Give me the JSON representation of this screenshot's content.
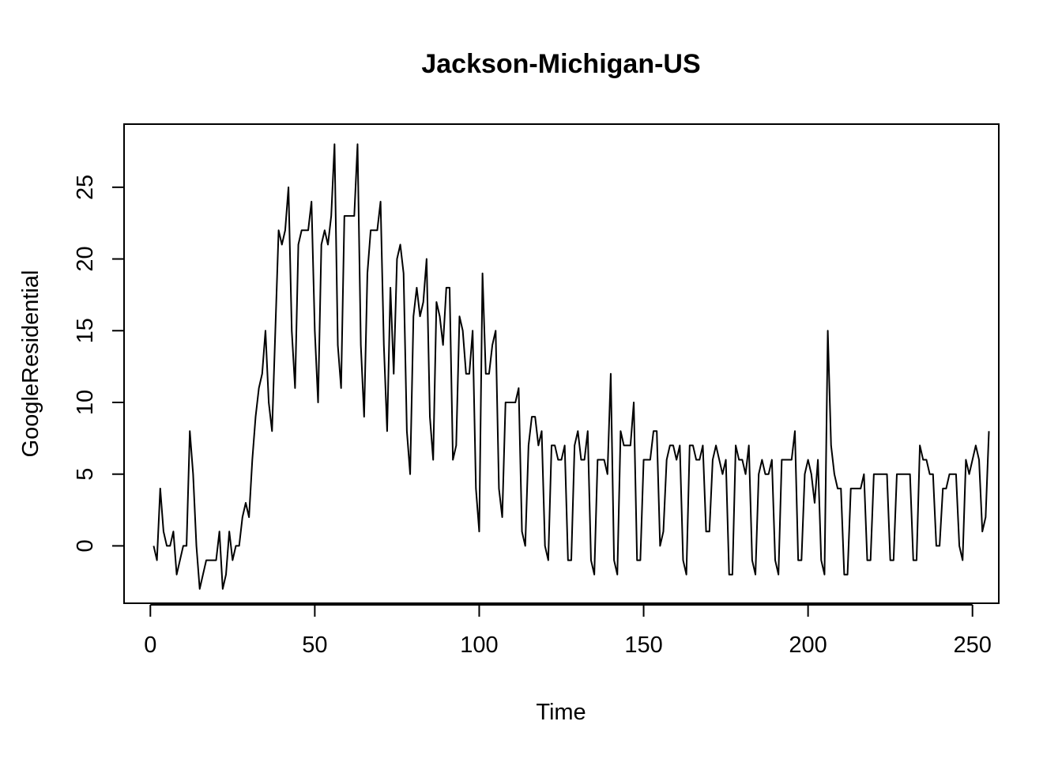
{
  "chart_data": {
    "type": "line",
    "title": "Jackson-Michigan-US",
    "xlabel": "Time",
    "ylabel": "GoogleResidential",
    "xlim": [
      -8,
      258
    ],
    "ylim": [
      -4,
      29.4
    ],
    "xticks": [
      0,
      50,
      100,
      150,
      200,
      250
    ],
    "yticks": [
      0,
      5,
      10,
      15,
      20,
      25
    ],
    "grid": false,
    "legend": "none",
    "line_color": "#000000",
    "series": [
      {
        "x_start": 1,
        "values": [
          0,
          -1,
          4,
          1,
          0,
          0,
          1,
          -2,
          -1,
          0,
          0,
          8,
          5,
          0,
          -3,
          -2,
          -1,
          -1,
          -1,
          -1,
          1,
          -3,
          -2,
          1,
          -1,
          0,
          0,
          2,
          3,
          2,
          6,
          9,
          11,
          12,
          15,
          10,
          8,
          15,
          22,
          21,
          22,
          25,
          15,
          11,
          21,
          22,
          22,
          22,
          24,
          15,
          10,
          21,
          22,
          21,
          23,
          28,
          14,
          11,
          23,
          23,
          23,
          23,
          28,
          14,
          9,
          19,
          22,
          22,
          22,
          24,
          14,
          8,
          18,
          12,
          20,
          21,
          19,
          8,
          5,
          16,
          18,
          16,
          17,
          20,
          9,
          6,
          17,
          16,
          14,
          18,
          18,
          6,
          7,
          16,
          15,
          12,
          12,
          15,
          4,
          1,
          19,
          12,
          12,
          14,
          15,
          4,
          2,
          10,
          10,
          10,
          10,
          11,
          1,
          0,
          7,
          9,
          9,
          7,
          8,
          0,
          -1,
          7,
          7,
          6,
          6,
          7,
          -1,
          -1,
          7,
          8,
          6,
          6,
          8,
          -1,
          -2,
          6,
          6,
          6,
          5,
          12,
          -1,
          -2,
          8,
          7,
          7,
          7,
          10,
          -1,
          -1,
          6,
          6,
          6,
          8,
          8,
          0,
          1,
          6,
          7,
          7,
          6,
          7,
          -1,
          -2,
          7,
          7,
          6,
          6,
          7,
          1,
          1,
          6,
          7,
          6,
          5,
          6,
          -2,
          -2,
          7,
          6,
          6,
          5,
          7,
          -1,
          -2,
          5,
          6,
          5,
          5,
          6,
          -1,
          -2,
          6,
          6,
          6,
          6,
          8,
          -1,
          -1,
          5,
          6,
          5,
          3,
          6,
          -1,
          -2,
          15,
          7,
          5,
          4,
          4,
          -2,
          -2,
          4,
          4,
          4,
          4,
          5,
          -1,
          -1,
          5,
          5,
          5,
          5,
          5,
          -1,
          -1,
          5,
          5,
          5,
          5,
          5,
          -1,
          -1,
          7,
          6,
          6,
          5,
          5,
          0,
          0,
          4,
          4,
          5,
          5,
          5,
          0,
          -1,
          6,
          5,
          6,
          7,
          6,
          1,
          2,
          8
        ]
      }
    ]
  }
}
